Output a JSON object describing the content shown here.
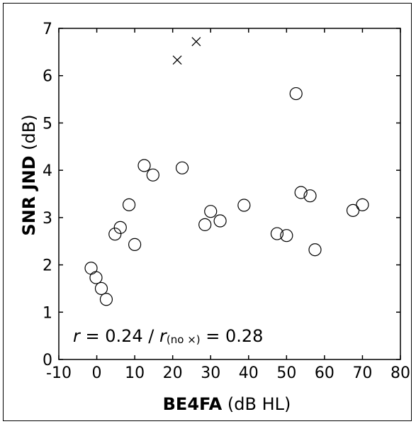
{
  "chart_data": {
    "type": "scatter",
    "xlabel": {
      "bold": "BE4FA",
      "normal": " (dB HL)"
    },
    "ylabel": {
      "bold": "SNR JND",
      "normal": " (dB)"
    },
    "xlim": [
      -10,
      80
    ],
    "ylim": [
      0,
      7
    ],
    "xticks": [
      "-10",
      "0",
      "10",
      "20",
      "30",
      "40",
      "50",
      "60",
      "70",
      "80"
    ],
    "yticks": [
      "0",
      "1",
      "2",
      "3",
      "4",
      "5",
      "6",
      "7"
    ],
    "grid": false,
    "annotation": {
      "r_symbol": "r",
      "r_value": " = 0.24 / ",
      "r2_symbol": "r",
      "r2_sub": "(no ×)",
      "r2_value": " = 0.28"
    },
    "series": [
      {
        "marker": "circle",
        "points": [
          [
            -1.5,
            1.93
          ],
          [
            -0.2,
            1.73
          ],
          [
            1.2,
            1.5
          ],
          [
            2.5,
            1.27
          ],
          [
            4.8,
            2.65
          ],
          [
            6.2,
            2.79
          ],
          [
            8.5,
            3.27
          ],
          [
            10.0,
            2.43
          ],
          [
            12.5,
            4.1
          ],
          [
            14.8,
            3.9
          ],
          [
            22.5,
            4.05
          ],
          [
            28.5,
            2.85
          ],
          [
            30.0,
            3.13
          ],
          [
            32.5,
            2.93
          ],
          [
            38.8,
            3.26
          ],
          [
            47.5,
            2.66
          ],
          [
            50.0,
            2.62
          ],
          [
            52.5,
            5.62
          ],
          [
            53.8,
            3.53
          ],
          [
            56.2,
            3.46
          ],
          [
            57.5,
            2.32
          ],
          [
            67.5,
            3.15
          ],
          [
            70.0,
            3.27
          ]
        ]
      },
      {
        "marker": "x",
        "points": [
          [
            21.2,
            6.33
          ],
          [
            26.2,
            6.72
          ]
        ]
      }
    ]
  }
}
